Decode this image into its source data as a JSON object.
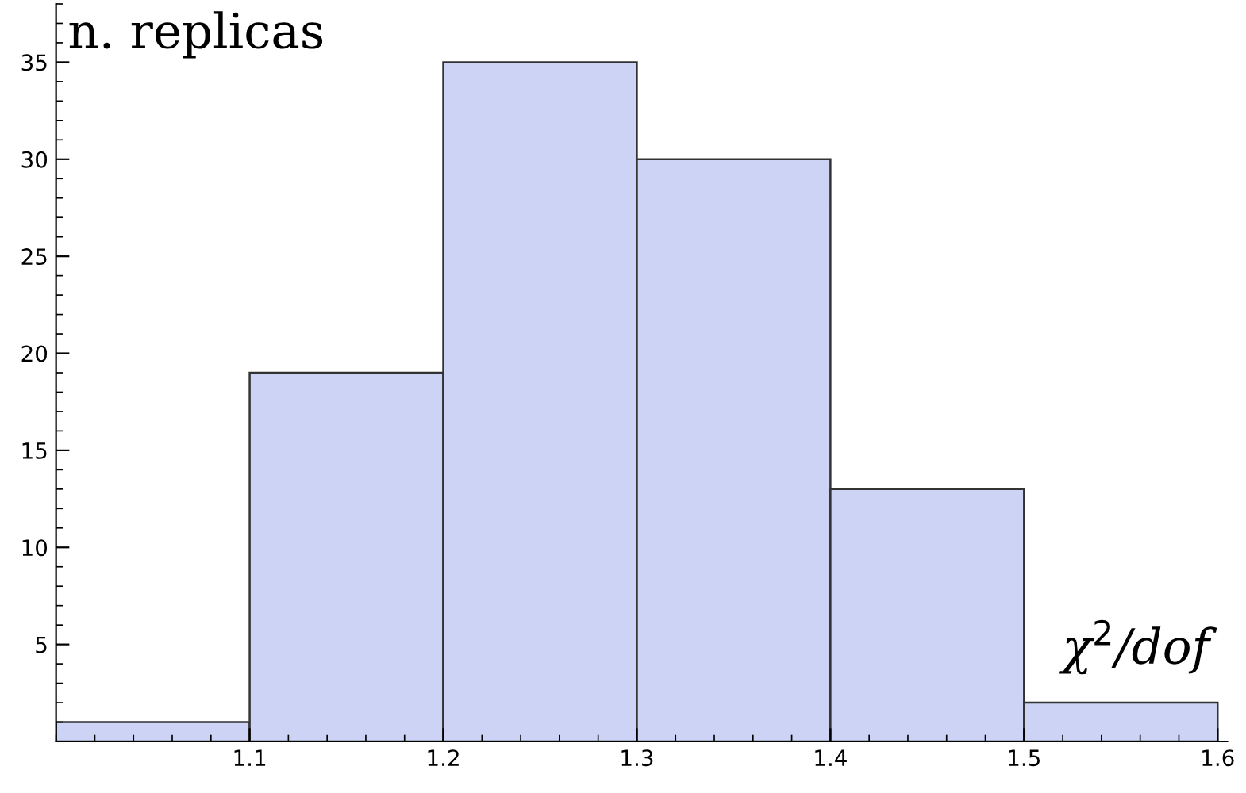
{
  "chart_data": {
    "type": "histogram",
    "ylabel": "n. replicas",
    "xlabel": "χ$^{2}$/dof",
    "bins": [
      1.0,
      1.1,
      1.2,
      1.3,
      1.4,
      1.5,
      1.6
    ],
    "values": [
      1,
      19,
      35,
      30,
      13,
      2
    ],
    "color": "#ccd3f4",
    "xlim": [
      1.0,
      1.605
    ],
    "ylim": [
      0,
      38
    ],
    "xticks": [
      1.1,
      1.2,
      1.3,
      1.4,
      1.5,
      1.6
    ],
    "yticks": [
      5,
      10,
      15,
      20,
      25,
      30,
      35
    ],
    "grid": false
  }
}
